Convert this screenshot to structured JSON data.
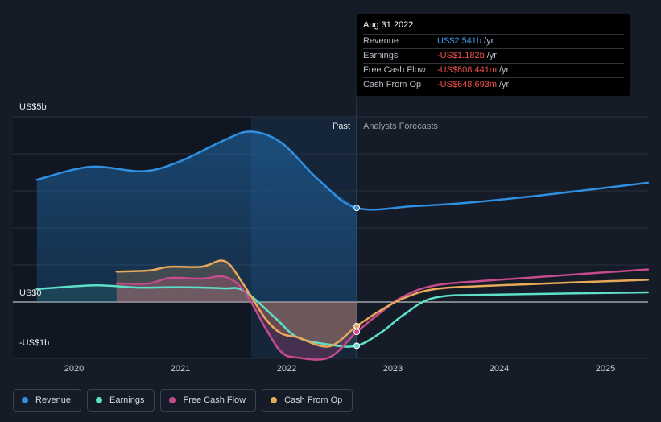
{
  "chart_data": {
    "type": "area",
    "y_axis_labels": [
      "US$5b",
      "US$0",
      "-US$1b"
    ],
    "ylim": [
      -1.5,
      5
    ],
    "x_ticks": [
      "2020",
      "2021",
      "2022",
      "2023",
      "2024",
      "2025"
    ],
    "period_labels": {
      "past": "Past",
      "forecast": "Analysts Forecasts"
    },
    "divider_date": 2022.66,
    "series": [
      {
        "name": "Revenue",
        "color": "#2f8fe0",
        "x": [
          2019.65,
          2020.15,
          2020.65,
          2021.0,
          2021.4,
          2021.66,
          2021.95,
          2022.3,
          2022.66,
          2023.2,
          2023.7,
          2024.3,
          2024.9,
          2025.4
        ],
        "y": [
          3.3,
          3.65,
          3.53,
          3.8,
          4.35,
          4.6,
          4.3,
          3.3,
          2.54,
          2.59,
          2.68,
          2.85,
          3.05,
          3.22
        ]
      },
      {
        "name": "Earnings",
        "color": "#5ee0c8",
        "x": [
          2019.65,
          2020.2,
          2020.6,
          2021.0,
          2021.4,
          2021.6,
          2021.9,
          2022.1,
          2022.4,
          2022.66,
          2022.9,
          2023.1,
          2023.4,
          2024.0,
          2025.4
        ],
        "y": [
          0.35,
          0.45,
          0.39,
          0.4,
          0.37,
          0.3,
          -0.45,
          -0.95,
          -1.15,
          -1.182,
          -0.8,
          -0.35,
          0.12,
          0.2,
          0.26
        ]
      },
      {
        "name": "Free Cash Flow",
        "color": "#c64b8c",
        "x": [
          2020.4,
          2020.7,
          2020.9,
          2021.2,
          2021.42,
          2021.6,
          2021.8,
          2021.95,
          2022.1,
          2022.4,
          2022.66,
          2022.9,
          2023.1,
          2023.4,
          2024.0,
          2025.4
        ],
        "y": [
          0.5,
          0.5,
          0.65,
          0.63,
          0.68,
          0.3,
          -0.7,
          -1.35,
          -1.5,
          -1.5,
          -0.808,
          -0.25,
          0.15,
          0.45,
          0.6,
          0.88
        ]
      },
      {
        "name": "Cash From Op",
        "color": "#e8a95a",
        "x": [
          2020.4,
          2020.7,
          2020.9,
          2021.2,
          2021.42,
          2021.6,
          2021.8,
          2021.95,
          2022.1,
          2022.4,
          2022.66,
          2022.9,
          2023.1,
          2023.4,
          2024.0,
          2025.4
        ],
        "y": [
          0.82,
          0.85,
          0.95,
          0.95,
          1.1,
          0.45,
          -0.45,
          -0.85,
          -0.95,
          -1.2,
          -0.649,
          -0.2,
          0.1,
          0.35,
          0.45,
          0.6
        ]
      }
    ],
    "grid": true
  },
  "tooltip": {
    "date": "Aug 31 2022",
    "rows": [
      {
        "name": "Revenue",
        "value": "US$2.541b",
        "unit": "/yr",
        "color": "#3a9be8"
      },
      {
        "name": "Earnings",
        "value": "-US$1.182b",
        "unit": "/yr",
        "color": "#f0504b"
      },
      {
        "name": "Free Cash Flow",
        "value": "-US$808.441m",
        "unit": "/yr",
        "color": "#f0504b"
      },
      {
        "name": "Cash From Op",
        "value": "-US$648.693m",
        "unit": "/yr",
        "color": "#f0504b"
      }
    ]
  },
  "legend": [
    {
      "label": "Revenue",
      "color": "#2f8fe0"
    },
    {
      "label": "Earnings",
      "color": "#5ee0c8"
    },
    {
      "label": "Free Cash Flow",
      "color": "#c64b8c"
    },
    {
      "label": "Cash From Op",
      "color": "#e8a95a"
    }
  ]
}
